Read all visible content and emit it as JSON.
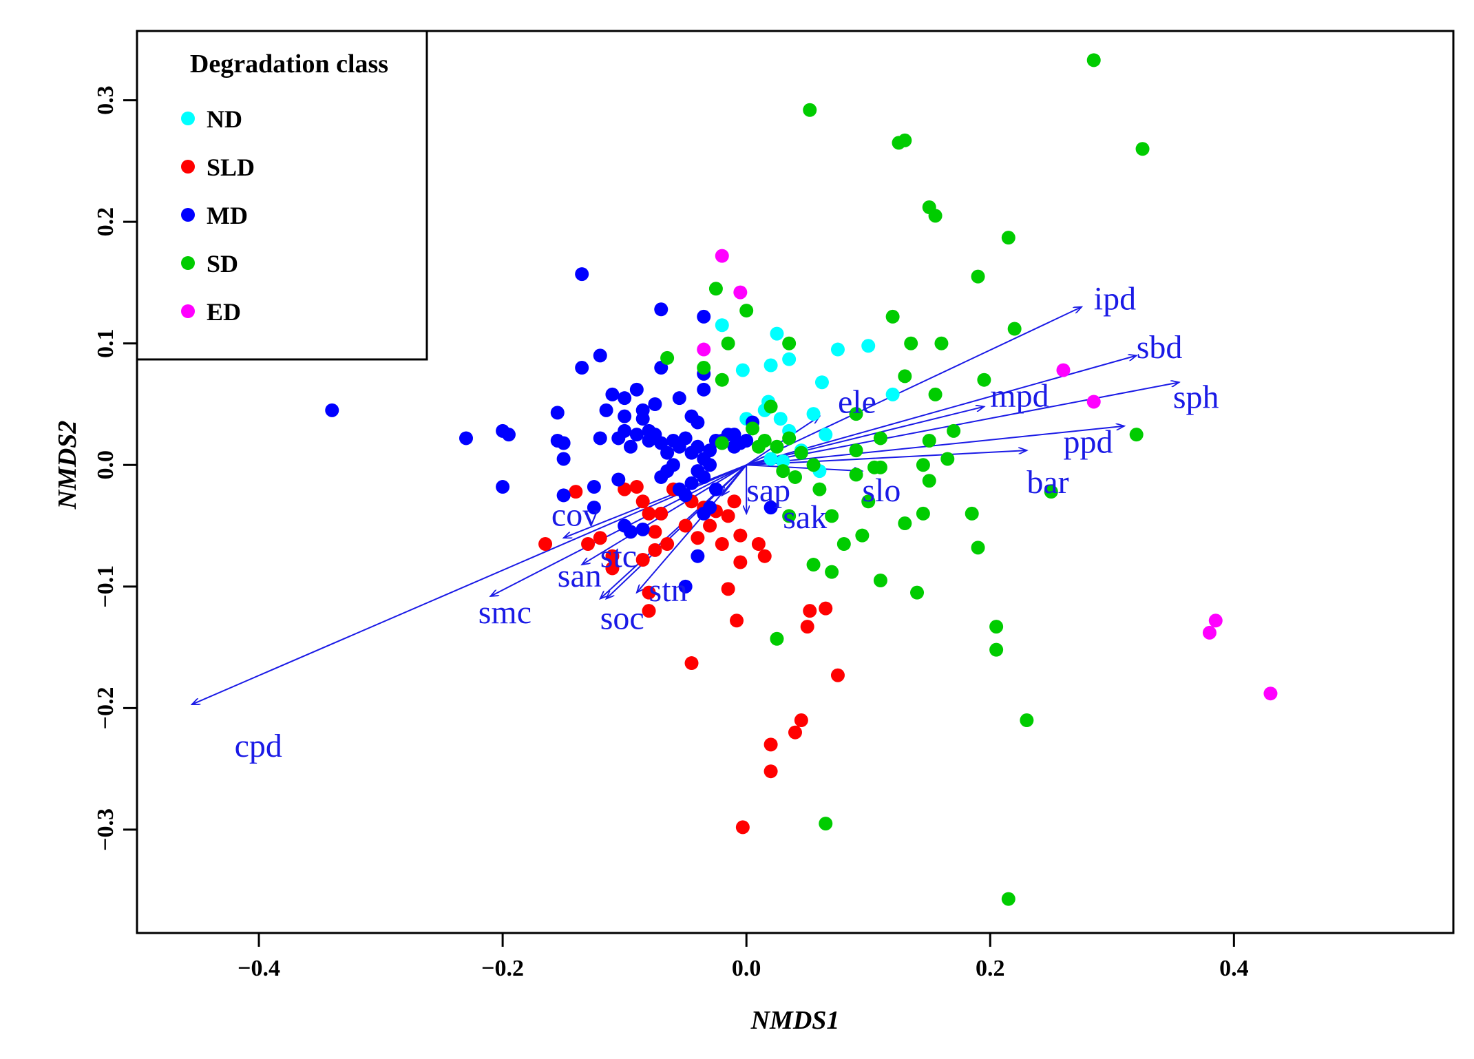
{
  "chart_data": {
    "type": "scatter",
    "xlabel": "NMDS1",
    "ylabel": "NMDS2",
    "xlim": [
      -0.5,
      0.58
    ],
    "ylim": [
      -0.385,
      0.357
    ],
    "xticks": [
      -0.4,
      -0.2,
      0.0,
      0.2,
      0.4
    ],
    "yticks": [
      -0.3,
      -0.2,
      -0.1,
      0.0,
      0.1,
      0.2,
      0.3
    ],
    "xtick_labels": [
      "−0.4",
      "−0.2",
      "0.0",
      "0.2",
      "0.4"
    ],
    "ytick_labels": [
      "−0.3",
      "−0.2",
      "−0.1",
      "0.0",
      "0.1",
      "0.2",
      "0.3"
    ],
    "grid": false,
    "legend": {
      "title": "Degradation class",
      "placement": "top-left"
    },
    "series": [
      {
        "name": "ND",
        "color": "#00ffff",
        "points": [
          [
            -0.02,
            0.115
          ],
          [
            0.025,
            0.108
          ],
          [
            0.02,
            0.082
          ],
          [
            0.035,
            0.087
          ],
          [
            0.075,
            0.095
          ],
          [
            0.1,
            0.098
          ],
          [
            -0.003,
            0.078
          ],
          [
            0.062,
            0.068
          ],
          [
            0.018,
            0.052
          ],
          [
            0.12,
            0.058
          ],
          [
            0.055,
            0.042
          ],
          [
            0.028,
            0.038
          ],
          [
            0.0,
            0.038
          ],
          [
            0.015,
            0.045
          ],
          [
            0.035,
            0.028
          ],
          [
            0.065,
            0.025
          ],
          [
            0.02,
            0.005
          ],
          [
            0.06,
            -0.005
          ],
          [
            0.03,
            0.003
          ],
          [
            0.045,
            0.012
          ]
        ]
      },
      {
        "name": "SLD",
        "color": "#ff0000",
        "points": [
          [
            -0.165,
            -0.065
          ],
          [
            -0.13,
            -0.065
          ],
          [
            -0.12,
            -0.06
          ],
          [
            -0.11,
            -0.075
          ],
          [
            -0.11,
            -0.085
          ],
          [
            -0.14,
            -0.022
          ],
          [
            -0.1,
            -0.02
          ],
          [
            -0.09,
            -0.018
          ],
          [
            -0.085,
            -0.03
          ],
          [
            -0.08,
            -0.04
          ],
          [
            -0.075,
            -0.055
          ],
          [
            -0.075,
            -0.07
          ],
          [
            -0.085,
            -0.078
          ],
          [
            -0.08,
            -0.105
          ],
          [
            -0.08,
            -0.12
          ],
          [
            -0.07,
            -0.04
          ],
          [
            -0.065,
            -0.065
          ],
          [
            -0.05,
            -0.05
          ],
          [
            -0.045,
            -0.03
          ],
          [
            -0.04,
            -0.06
          ],
          [
            -0.03,
            -0.05
          ],
          [
            -0.025,
            -0.038
          ],
          [
            -0.02,
            -0.065
          ],
          [
            -0.015,
            -0.042
          ],
          [
            -0.01,
            -0.03
          ],
          [
            -0.005,
            -0.058
          ],
          [
            0.01,
            -0.065
          ],
          [
            0.015,
            -0.075
          ],
          [
            -0.005,
            -0.08
          ],
          [
            -0.015,
            -0.102
          ],
          [
            -0.008,
            -0.128
          ],
          [
            0.052,
            -0.12
          ],
          [
            0.065,
            -0.118
          ],
          [
            0.05,
            -0.133
          ],
          [
            0.075,
            -0.173
          ],
          [
            -0.045,
            -0.163
          ],
          [
            0.045,
            -0.21
          ],
          [
            0.04,
            -0.22
          ],
          [
            0.02,
            -0.23
          ],
          [
            0.02,
            -0.252
          ],
          [
            -0.003,
            -0.298
          ],
          [
            -0.06,
            -0.02
          ],
          [
            -0.035,
            -0.035
          ]
        ]
      },
      {
        "name": "MD",
        "color": "#0000ff",
        "points": [
          [
            -0.34,
            0.045
          ],
          [
            -0.23,
            0.022
          ],
          [
            -0.2,
            0.028
          ],
          [
            -0.195,
            0.025
          ],
          [
            -0.2,
            -0.018
          ],
          [
            -0.15,
            -0.025
          ],
          [
            -0.125,
            -0.035
          ],
          [
            -0.15,
            0.005
          ],
          [
            -0.155,
            0.02
          ],
          [
            -0.15,
            0.018
          ],
          [
            -0.155,
            0.043
          ],
          [
            -0.135,
            0.157
          ],
          [
            -0.135,
            0.08
          ],
          [
            -0.12,
            0.09
          ],
          [
            -0.11,
            0.058
          ],
          [
            -0.115,
            0.045
          ],
          [
            -0.12,
            0.022
          ],
          [
            -0.1,
            0.055
          ],
          [
            -0.1,
            0.04
          ],
          [
            -0.09,
            0.062
          ],
          [
            -0.085,
            0.045
          ],
          [
            -0.075,
            0.05
          ],
          [
            -0.07,
            0.08
          ],
          [
            -0.07,
            0.128
          ],
          [
            -0.1,
            0.028
          ],
          [
            -0.105,
            0.022
          ],
          [
            -0.095,
            0.015
          ],
          [
            -0.09,
            0.025
          ],
          [
            -0.08,
            0.02
          ],
          [
            -0.075,
            0.025
          ],
          [
            -0.07,
            0.018
          ],
          [
            -0.065,
            0.01
          ],
          [
            -0.06,
            0.02
          ],
          [
            -0.055,
            0.015
          ],
          [
            -0.05,
            0.022
          ],
          [
            -0.045,
            0.01
          ],
          [
            -0.04,
            0.015
          ],
          [
            -0.035,
            0.005
          ],
          [
            -0.03,
            0.012
          ],
          [
            -0.025,
            0.02
          ],
          [
            -0.02,
            0.02
          ],
          [
            -0.015,
            0.025
          ],
          [
            -0.01,
            0.015
          ],
          [
            -0.005,
            0.018
          ],
          [
            -0.06,
            0.0
          ],
          [
            -0.065,
            -0.005
          ],
          [
            -0.07,
            -0.01
          ],
          [
            -0.055,
            -0.02
          ],
          [
            -0.05,
            -0.025
          ],
          [
            -0.045,
            -0.015
          ],
          [
            -0.04,
            -0.005
          ],
          [
            -0.035,
            -0.01
          ],
          [
            -0.03,
            0.0
          ],
          [
            -0.025,
            -0.02
          ],
          [
            -0.1,
            -0.05
          ],
          [
            -0.095,
            -0.055
          ],
          [
            -0.085,
            -0.053
          ],
          [
            -0.05,
            -0.1
          ],
          [
            -0.04,
            -0.075
          ],
          [
            -0.035,
            -0.04
          ],
          [
            -0.03,
            -0.035
          ],
          [
            -0.035,
            0.122
          ],
          [
            -0.035,
            0.075
          ],
          [
            -0.035,
            0.062
          ],
          [
            -0.055,
            0.055
          ],
          [
            -0.04,
            0.035
          ],
          [
            0.005,
            0.035
          ],
          [
            -0.01,
            0.025
          ],
          [
            0.02,
            -0.035
          ],
          [
            -0.045,
            0.04
          ],
          [
            -0.08,
            0.028
          ],
          [
            -0.085,
            0.038
          ],
          [
            -0.125,
            -0.018
          ],
          [
            -0.105,
            -0.012
          ],
          [
            0.0,
            0.02
          ]
        ]
      },
      {
        "name": "SD",
        "color": "#00cc00",
        "points": [
          [
            0.285,
            0.333
          ],
          [
            0.052,
            0.292
          ],
          [
            0.125,
            0.265
          ],
          [
            0.13,
            0.267
          ],
          [
            0.325,
            0.26
          ],
          [
            0.15,
            0.212
          ],
          [
            0.155,
            0.205
          ],
          [
            0.215,
            0.187
          ],
          [
            0.19,
            0.155
          ],
          [
            -0.025,
            0.145
          ],
          [
            -0.02,
            0.07
          ],
          [
            0.0,
            0.127
          ],
          [
            0.12,
            0.122
          ],
          [
            0.22,
            0.112
          ],
          [
            0.135,
            0.1
          ],
          [
            0.16,
            0.1
          ],
          [
            -0.065,
            0.088
          ],
          [
            -0.035,
            0.08
          ],
          [
            -0.015,
            0.1
          ],
          [
            0.035,
            0.1
          ],
          [
            0.13,
            0.073
          ],
          [
            0.195,
            0.07
          ],
          [
            0.155,
            0.058
          ],
          [
            0.09,
            0.042
          ],
          [
            0.17,
            0.028
          ],
          [
            0.11,
            0.022
          ],
          [
            0.15,
            0.02
          ],
          [
            0.32,
            0.025
          ],
          [
            0.09,
            0.012
          ],
          [
            0.165,
            0.005
          ],
          [
            0.145,
            0.0
          ],
          [
            0.105,
            -0.002
          ],
          [
            0.11,
            -0.002
          ],
          [
            0.09,
            -0.008
          ],
          [
            0.15,
            -0.013
          ],
          [
            0.25,
            -0.022
          ],
          [
            0.06,
            -0.02
          ],
          [
            0.1,
            -0.03
          ],
          [
            0.07,
            -0.042
          ],
          [
            0.145,
            -0.04
          ],
          [
            0.185,
            -0.04
          ],
          [
            0.13,
            -0.048
          ],
          [
            0.095,
            -0.058
          ],
          [
            0.08,
            -0.065
          ],
          [
            0.19,
            -0.068
          ],
          [
            0.055,
            -0.082
          ],
          [
            0.07,
            -0.088
          ],
          [
            0.11,
            -0.095
          ],
          [
            0.14,
            -0.105
          ],
          [
            0.205,
            -0.133
          ],
          [
            0.205,
            -0.152
          ],
          [
            0.025,
            -0.143
          ],
          [
            0.23,
            -0.21
          ],
          [
            0.065,
            -0.295
          ],
          [
            0.215,
            -0.357
          ],
          [
            0.04,
            -0.01
          ],
          [
            0.045,
            0.01
          ],
          [
            0.035,
            0.022
          ],
          [
            0.025,
            0.015
          ],
          [
            0.015,
            0.02
          ],
          [
            0.01,
            0.015
          ],
          [
            0.005,
            0.03
          ],
          [
            -0.02,
            0.018
          ],
          [
            0.02,
            0.048
          ],
          [
            0.035,
            -0.042
          ],
          [
            0.03,
            -0.005
          ],
          [
            0.055,
            0.0
          ]
        ]
      },
      {
        "name": "ED",
        "color": "#ff00ff",
        "points": [
          [
            -0.02,
            0.172
          ],
          [
            -0.005,
            0.142
          ],
          [
            -0.035,
            0.095
          ],
          [
            0.26,
            0.078
          ],
          [
            0.285,
            0.052
          ],
          [
            0.385,
            -0.128
          ],
          [
            0.38,
            -0.138
          ],
          [
            0.43,
            -0.188
          ]
        ]
      }
    ],
    "vectors": [
      {
        "name": "ipd",
        "end": [
          0.275,
          0.13
        ],
        "label_pos": [
          0.285,
          0.128
        ]
      },
      {
        "name": "sbd",
        "end": [
          0.32,
          0.09
        ],
        "label_pos": [
          0.32,
          0.088
        ]
      },
      {
        "name": "sph",
        "end": [
          0.355,
          0.068
        ],
        "label_pos": [
          0.35,
          0.047
        ]
      },
      {
        "name": "mpd",
        "end": [
          0.195,
          0.048
        ],
        "label_pos": [
          0.2,
          0.048
        ]
      },
      {
        "name": "ppd",
        "end": [
          0.31,
          0.032
        ],
        "label_pos": [
          0.26,
          0.01
        ]
      },
      {
        "name": "bar",
        "end": [
          0.23,
          0.012
        ],
        "label_pos": [
          0.23,
          -0.023
        ]
      },
      {
        "name": "ele",
        "end": [
          0.06,
          0.04
        ],
        "label_pos": [
          0.075,
          0.043
        ]
      },
      {
        "name": "slo",
        "end": [
          0.095,
          -0.005
        ],
        "label_pos": [
          0.095,
          -0.03
        ]
      },
      {
        "name": "sap",
        "end": [
          -0.02,
          -0.025
        ],
        "label_pos": [
          0.0,
          -0.03
        ]
      },
      {
        "name": "sak",
        "end": [
          0.0,
          -0.04
        ],
        "label_pos": [
          0.03,
          -0.052
        ]
      },
      {
        "name": "cov",
        "end": [
          -0.15,
          -0.06
        ],
        "label_pos": [
          -0.16,
          -0.05
        ]
      },
      {
        "name": "san",
        "end": [
          -0.135,
          -0.082
        ],
        "label_pos": [
          -0.155,
          -0.1
        ]
      },
      {
        "name": "stc",
        "end": [
          -0.115,
          -0.11
        ],
        "label_pos": [
          -0.12,
          -0.084
        ]
      },
      {
        "name": "smc",
        "end": [
          -0.21,
          -0.108
        ],
        "label_pos": [
          -0.22,
          -0.13
        ]
      },
      {
        "name": "soc",
        "end": [
          -0.12,
          -0.11
        ],
        "label_pos": [
          -0.12,
          -0.135
        ]
      },
      {
        "name": "stn",
        "end": [
          -0.09,
          -0.105
        ],
        "label_pos": [
          -0.08,
          -0.112
        ]
      },
      {
        "name": "cpd",
        "end": [
          -0.455,
          -0.197
        ],
        "label_pos": [
          -0.42,
          -0.24
        ]
      }
    ],
    "vector_color": "#1a1ae6",
    "vector_origin": [
      0.0,
      0.0
    ]
  }
}
